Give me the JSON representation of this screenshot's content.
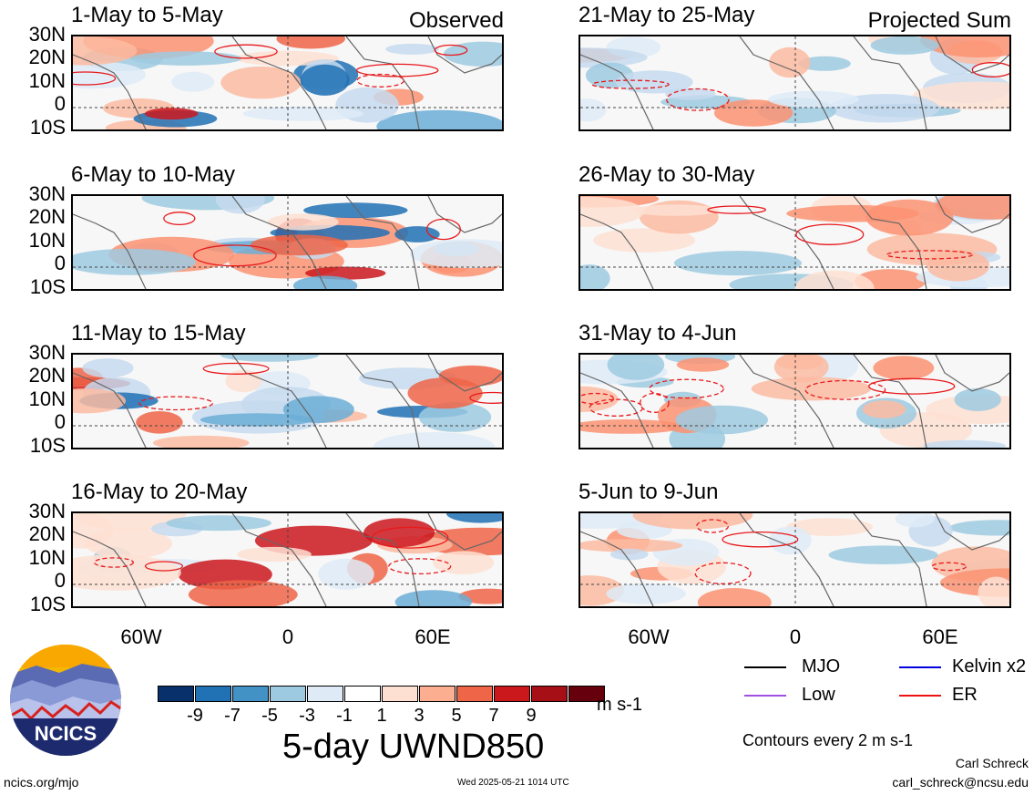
{
  "panels": [
    {
      "title": "1-May to 5-May",
      "tag": "Observed"
    },
    {
      "title": "6-May to 10-May",
      "tag": ""
    },
    {
      "title": "11-May to 15-May",
      "tag": ""
    },
    {
      "title": "16-May to 20-May",
      "tag": ""
    },
    {
      "title": "21-May to 25-May",
      "tag": "Projected Sum"
    },
    {
      "title": "26-May to 30-May",
      "tag": ""
    },
    {
      "title": "31-May to 4-Jun",
      "tag": ""
    },
    {
      "title": "5-Jun to 9-Jun",
      "tag": ""
    }
  ],
  "lat_labels": [
    "30N",
    "20N",
    "10N",
    "0",
    "10S"
  ],
  "lon_labels": [
    "60W",
    "0",
    "60E"
  ],
  "colorbar": {
    "labels": [
      "-9",
      "-7",
      "-5",
      "-3",
      "-1",
      "1",
      "3",
      "5",
      "7",
      "9"
    ],
    "colors": [
      "#08306b",
      "#2171b5",
      "#4292c6",
      "#9ecae1",
      "#deebf7",
      "#ffffff",
      "#fee0d2",
      "#fcae91",
      "#ef6548",
      "#cb181d",
      "#a50f15",
      "#67000d"
    ]
  },
  "units": "m s-1",
  "main_title": "5-day UWND850",
  "legend": {
    "items": [
      {
        "label": "MJO",
        "color": "#000000"
      },
      {
        "label": "Kelvin x2",
        "color": "#0000dd"
      },
      {
        "label": "Low",
        "color": "#a050e0"
      },
      {
        "label": "ER",
        "color": "#ee1111"
      }
    ],
    "note": "Contours every 2 m s-1"
  },
  "logo_text": "NCICS",
  "footer": {
    "left": "ncics.org/mjo",
    "center": "Wed 2025-05-21 1014 UTC",
    "author": "Carl Schreck",
    "email": "carl_schreck@ncsu.edu"
  }
}
